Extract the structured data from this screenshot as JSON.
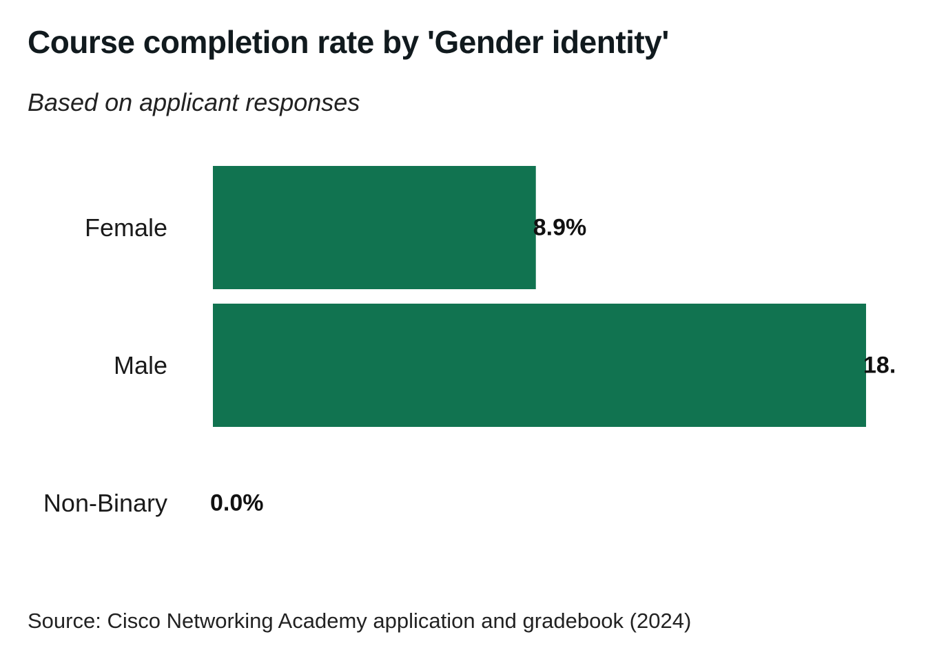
{
  "chart_data": {
    "type": "bar",
    "orientation": "horizontal",
    "title": "Course completion rate by 'Gender identity'",
    "subtitle": "Based on applicant responses",
    "source": "Source: Cisco Networking Academy application and gradebook (2024)",
    "categories": [
      "Female",
      "Male",
      "Non-Binary"
    ],
    "values": [
      8.9,
      18.0,
      0.0
    ],
    "data_labels": [
      "8.9%",
      "18.",
      "0.0%"
    ],
    "xlim": [
      0,
      18.0
    ],
    "grid": false,
    "legend": "none",
    "bar_color": "#117350"
  }
}
